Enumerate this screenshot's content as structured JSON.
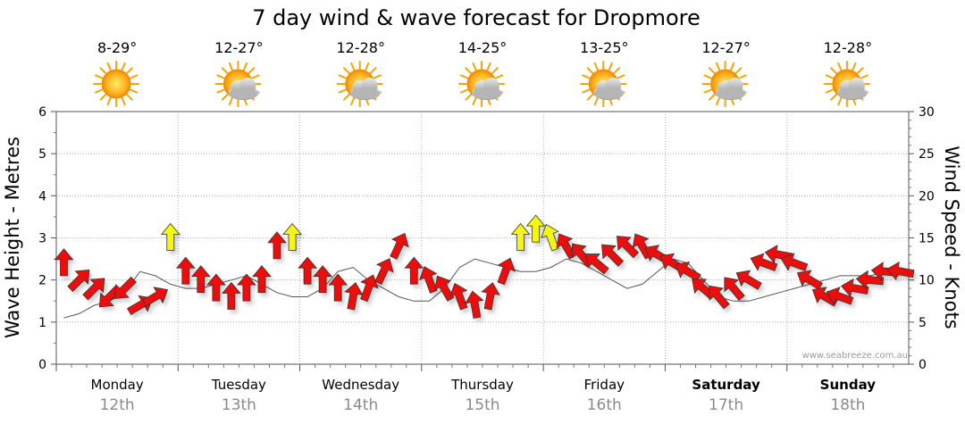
{
  "page": {
    "watermark": "www.seabreeze.com.au"
  },
  "chart_data": {
    "type": "line",
    "title": "7 day wind & wave forecast for Dropmore",
    "ylabel_left": "Wave Height - Metres",
    "ylabel_right": "Wind Speed - Knots",
    "ylim_left": [
      0,
      6
    ],
    "ylim_right": [
      0,
      30
    ],
    "left_ticks": [
      "0",
      "1",
      "2",
      "3",
      "4",
      "5",
      "6"
    ],
    "right_ticks": [
      "0",
      "5",
      "10",
      "15",
      "20",
      "25",
      "30"
    ],
    "grid": true,
    "days": [
      {
        "name": "Monday",
        "date": "12th",
        "temp": "8-29°",
        "icon": "sun-icon",
        "weekend": false
      },
      {
        "name": "Tuesday",
        "date": "13th",
        "temp": "12-27°",
        "icon": "sun-cloud-icon",
        "weekend": false
      },
      {
        "name": "Wednesday",
        "date": "14th",
        "temp": "12-28°",
        "icon": "sun-cloud-icon",
        "weekend": false
      },
      {
        "name": "Thursday",
        "date": "15th",
        "temp": "14-25°",
        "icon": "sun-cloud-icon",
        "weekend": false
      },
      {
        "name": "Friday",
        "date": "16th",
        "temp": "13-25°",
        "icon": "sun-cloud-icon",
        "weekend": false
      },
      {
        "name": "Saturday",
        "date": "17th",
        "temp": "12-27°",
        "icon": "sun-cloud-icon",
        "weekend": true
      },
      {
        "name": "Sunday",
        "date": "18th",
        "temp": "12-28°",
        "icon": "sun-cloud-icon",
        "weekend": true
      }
    ],
    "colors": {
      "strong": "#ee1111",
      "moderate": "#f5f514",
      "grid": "#9a9a9a"
    },
    "series": [
      {
        "name": "Wave Height",
        "values": [
          1.1,
          1.2,
          1.4,
          1.5,
          1.7,
          2.2,
          2.1,
          1.9,
          1.8,
          1.8,
          1.9,
          2.0,
          2.1,
          1.9,
          1.7,
          1.6,
          1.6,
          1.8,
          2.2,
          2.3,
          2.0,
          1.8,
          1.6,
          1.5,
          1.5,
          1.8,
          2.3,
          2.5,
          2.4,
          2.3,
          2.2,
          2.2,
          2.3,
          2.5,
          2.4,
          2.2,
          2.0,
          1.8,
          1.9,
          2.2,
          2.5,
          2.4,
          2.0,
          1.6,
          1.5,
          1.5,
          1.6,
          1.7,
          1.8,
          1.9,
          2.0,
          2.1,
          2.1,
          2.1,
          2.2,
          2.2
        ]
      },
      {
        "name": "Wind",
        "arrows": [
          {
            "speed": 12,
            "dir": 180
          },
          {
            "speed": 10,
            "dir": 225
          },
          {
            "speed": 9,
            "dir": 225
          },
          {
            "speed": 8,
            "dir": 45
          },
          {
            "speed": 9,
            "dir": 45
          },
          {
            "speed": 7,
            "dir": 240
          },
          {
            "speed": 8,
            "dir": 240
          },
          {
            "speed": 15,
            "dir": 180
          },
          {
            "speed": 11,
            "dir": 180
          },
          {
            "speed": 10,
            "dir": 180
          },
          {
            "speed": 9,
            "dir": 180
          },
          {
            "speed": 8,
            "dir": 180
          },
          {
            "speed": 9,
            "dir": 180
          },
          {
            "speed": 10,
            "dir": 180
          },
          {
            "speed": 14,
            "dir": 180
          },
          {
            "speed": 15,
            "dir": 180
          },
          {
            "speed": 11,
            "dir": 180
          },
          {
            "speed": 10,
            "dir": 180
          },
          {
            "speed": 9,
            "dir": 180
          },
          {
            "speed": 8,
            "dir": 190
          },
          {
            "speed": 9,
            "dir": 200
          },
          {
            "speed": 11,
            "dir": 205
          },
          {
            "speed": 14,
            "dir": 205
          },
          {
            "speed": 11,
            "dir": 180
          },
          {
            "speed": 10,
            "dir": 160
          },
          {
            "speed": 9,
            "dir": 150
          },
          {
            "speed": 8,
            "dir": 160
          },
          {
            "speed": 7,
            "dir": 170
          },
          {
            "speed": 8,
            "dir": 190
          },
          {
            "speed": 11,
            "dir": 200
          },
          {
            "speed": 15,
            "dir": 180
          },
          {
            "speed": 16,
            "dir": 180
          },
          {
            "speed": 15,
            "dir": 160
          },
          {
            "speed": 14,
            "dir": 150
          },
          {
            "speed": 13,
            "dir": 140
          },
          {
            "speed": 12,
            "dir": 130
          },
          {
            "speed": 13,
            "dir": 135
          },
          {
            "speed": 14,
            "dir": 135
          },
          {
            "speed": 14,
            "dir": 150
          },
          {
            "speed": 13,
            "dir": 120
          },
          {
            "speed": 12,
            "dir": 120
          },
          {
            "speed": 11,
            "dir": 120
          },
          {
            "speed": 9,
            "dir": 130
          },
          {
            "speed": 8,
            "dir": 140
          },
          {
            "speed": 9,
            "dir": 140
          },
          {
            "speed": 10,
            "dir": 120
          },
          {
            "speed": 12,
            "dir": 110
          },
          {
            "speed": 13,
            "dir": 100
          },
          {
            "speed": 12,
            "dir": 110
          },
          {
            "speed": 10,
            "dir": 120
          },
          {
            "speed": 8,
            "dir": 120
          },
          {
            "speed": 8,
            "dir": 110
          },
          {
            "speed": 9,
            "dir": 100
          },
          {
            "speed": 10,
            "dir": 95
          },
          {
            "speed": 11,
            "dir": 95
          },
          {
            "speed": 11,
            "dir": 100
          }
        ]
      }
    ]
  }
}
